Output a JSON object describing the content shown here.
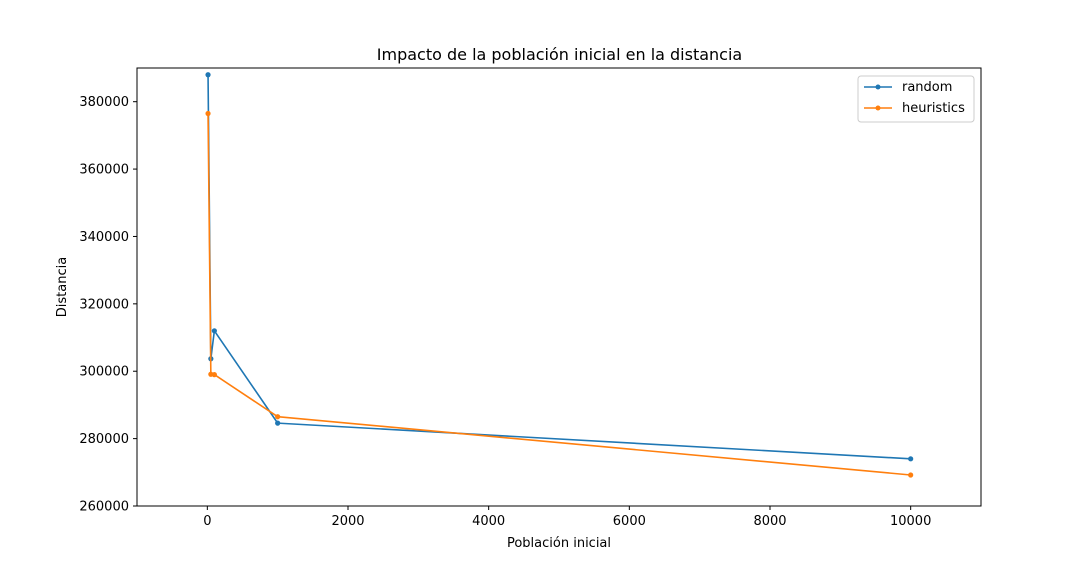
{
  "chart_data": {
    "type": "line",
    "title": "Impacto de la población inicial en la distancia",
    "xlabel": "Población inicial",
    "ylabel": "Distancia",
    "xlim": [
      -1000,
      11000
    ],
    "ylim": [
      260000,
      390000
    ],
    "xticks": [
      0,
      2000,
      4000,
      6000,
      8000,
      10000
    ],
    "yticks": [
      260000,
      280000,
      300000,
      320000,
      340000,
      360000,
      380000
    ],
    "xtick_labels": [
      "0",
      "2000",
      "4000",
      "6000",
      "8000",
      "10000"
    ],
    "ytick_labels": [
      "260000",
      "280000",
      "300000",
      "320000",
      "340000",
      "360000",
      "380000"
    ],
    "grid": false,
    "legend_position": "top-right",
    "series": [
      {
        "name": "random",
        "color": "#1f77b4",
        "x": [
          10,
          50,
          100,
          1000,
          10000
        ],
        "y": [
          388000,
          303700,
          312000,
          284600,
          274000
        ]
      },
      {
        "name": "heuristics",
        "color": "#ff7f0e",
        "x": [
          10,
          50,
          100,
          1000,
          10000
        ],
        "y": [
          376500,
          299100,
          299000,
          286500,
          269200
        ]
      }
    ]
  }
}
